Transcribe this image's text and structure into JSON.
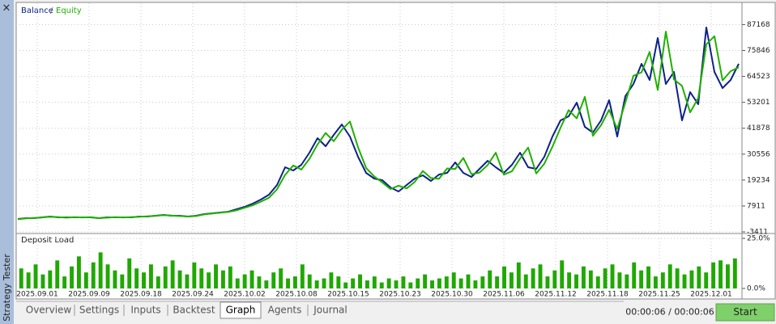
{
  "sidebar": {
    "close": "×",
    "title": "Strategy Tester"
  },
  "chart_data": [
    {
      "type": "line",
      "legend_separator": "/",
      "series": [
        {
          "name": "Balance",
          "color": "#0d2287",
          "values": [
            2240,
            2590,
            2590,
            2940,
            3300,
            2940,
            2940,
            2940,
            2940,
            2940,
            2590,
            2940,
            2940,
            2940,
            2940,
            3300,
            3300,
            3650,
            4000,
            3650,
            3650,
            3300,
            3650,
            4360,
            4710,
            5060,
            5410,
            6470,
            7530,
            8940,
            10710,
            12830,
            17060,
            24830,
            23420,
            25890,
            31180,
            37540,
            34010,
            38950,
            43540,
            38240,
            29420,
            22360,
            19890,
            19180,
            16000,
            14240,
            17060,
            19890,
            21300,
            18830,
            21650,
            22360,
            26950,
            22360,
            20590,
            24120,
            27650,
            24830,
            22360,
            25890,
            31180,
            24830,
            24120,
            29420,
            38240,
            45300,
            47070,
            53070,
            42480,
            40010,
            45300,
            54130,
            38240,
            55890,
            61190,
            70010,
            62950,
            81310,
            61190,
            66480,
            45300,
            57660,
            52360,
            85900,
            66480,
            59420,
            62950,
            70010
          ]
        },
        {
          "name": "Equity",
          "color": "#21b000",
          "values": [
            2100,
            2500,
            2700,
            2900,
            3200,
            3000,
            2800,
            3000,
            2900,
            3000,
            2600,
            2800,
            3000,
            2900,
            3000,
            3200,
            3400,
            3600,
            3900,
            3700,
            3500,
            3300,
            3500,
            4200,
            4600,
            5000,
            5300,
            6000,
            7100,
            8200,
            9800,
            11500,
            15200,
            21500,
            25600,
            23800,
            28500,
            34800,
            39800,
            36200,
            41200,
            44800,
            33600,
            24500,
            20800,
            18200,
            15300,
            16800,
            15600,
            18400,
            23200,
            20100,
            19800,
            24300,
            24100,
            28900,
            21800,
            22500,
            25800,
            31200,
            21600,
            23100,
            28600,
            33400,
            22100,
            26400,
            33800,
            42100,
            49800,
            46200,
            55600,
            38600,
            43200,
            49900,
            41600,
            53100,
            64800,
            66300,
            75200,
            58600,
            84100,
            63200,
            60400,
            48800,
            55100,
            78600,
            82100,
            62800,
            66800,
            68500
          ]
        }
      ],
      "ylim": [
        -3411,
        96500
      ],
      "yticks": [
        87168,
        75846,
        64523,
        53201,
        41878,
        30556,
        19234,
        7911,
        -3411
      ],
      "xticks": [
        "2025.09.01",
        "2025.09.09",
        "2025.09.18",
        "2025.09.24",
        "2025.10.02",
        "2025.10.08",
        "2025.10.15",
        "2025.10.23",
        "2025.10.30",
        "2025.11.06",
        "2025.11.12",
        "2025.11.18",
        "2025.11.25",
        "2025.12.01"
      ],
      "grid": true
    },
    {
      "type": "bar",
      "title": "Deposit Load",
      "color": "#1fa800",
      "values": [
        10,
        8,
        12,
        7,
        9,
        14,
        6,
        11,
        16,
        8,
        13,
        18,
        12,
        9,
        7,
        15,
        10,
        8,
        12,
        6,
        11,
        14,
        9,
        7,
        13,
        10,
        8,
        12,
        9,
        11,
        5,
        7,
        9,
        6,
        4,
        8,
        10,
        5,
        6,
        12,
        7,
        4,
        5,
        8,
        6,
        3,
        5,
        7,
        4,
        6,
        3,
        5,
        4,
        6,
        3,
        5,
        7,
        4,
        5,
        6,
        8,
        5,
        7,
        4,
        6,
        9,
        6,
        11,
        8,
        13,
        7,
        10,
        12,
        6,
        9,
        14,
        8,
        7,
        11,
        9,
        6,
        10,
        12,
        8,
        7,
        13,
        9,
        11,
        6,
        8,
        12,
        10,
        7,
        9,
        11,
        8,
        13,
        14,
        12,
        15
      ],
      "ylim": [
        0,
        25
      ],
      "yticks": [
        {
          "value": 25,
          "label": "25.0%"
        },
        {
          "value": 0,
          "label": "0.0%"
        }
      ],
      "grid": true
    }
  ],
  "tabs": [
    "Overview",
    "Settings",
    "Inputs",
    "Backtest",
    "Graph",
    "Agents",
    "Journal"
  ],
  "active_tab": 4,
  "timer": "00:00:06 / 00:00:06",
  "start_button": "Start"
}
